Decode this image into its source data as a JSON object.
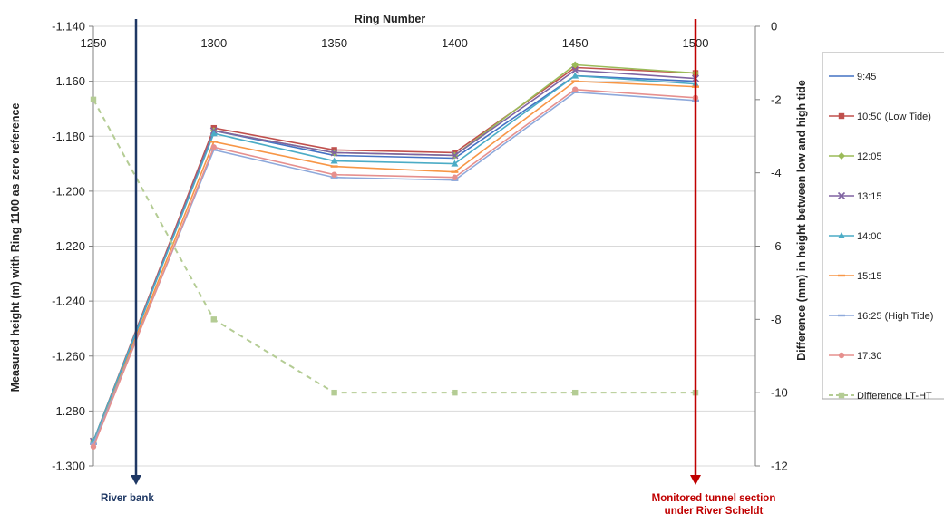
{
  "chart_data": {
    "type": "line",
    "title": "",
    "xlabel": "Ring Number",
    "ylabel": "Measured height (m) with Ring 1100 as zero reference",
    "y2label": "Difference (mm) in height  between low and high tide",
    "x": [
      1250,
      1300,
      1350,
      1400,
      1450,
      1500
    ],
    "xlim": [
      1250,
      1500
    ],
    "ylim": [
      -1.3,
      -1.14
    ],
    "y2lim": [
      -12,
      0
    ],
    "xticks": [
      "1250",
      "1300",
      "1350",
      "1400",
      "1450",
      "1500"
    ],
    "yticks": [
      "-1.140",
      "-1.160",
      "-1.180",
      "-1.200",
      "-1.220",
      "-1.240",
      "-1.260",
      "-1.280",
      "-1.300"
    ],
    "y2ticks": [
      "0",
      "-2",
      "-4",
      "-6",
      "-8",
      "-10",
      "-12"
    ],
    "grid": true,
    "legend_position": "right",
    "series": [
      {
        "name": "9:45",
        "color": "#4472C4",
        "marker": "none",
        "axis": "left",
        "values": [
          -1.292,
          -1.178,
          -1.187,
          -1.188,
          -1.158,
          -1.16
        ]
      },
      {
        "name": "10:50 (Low Tide)",
        "color": "#C0504D",
        "marker": "square",
        "axis": "left",
        "values": [
          -1.291,
          -1.177,
          -1.185,
          -1.186,
          -1.155,
          -1.157
        ]
      },
      {
        "name": "12:05",
        "color": "#9BBB59",
        "marker": "diamond",
        "axis": "left",
        "values": [
          -1.291,
          -1.178,
          -1.186,
          -1.187,
          -1.154,
          -1.157
        ]
      },
      {
        "name": "13:15",
        "color": "#8064A2",
        "marker": "x",
        "axis": "left",
        "values": [
          -1.291,
          -1.178,
          -1.186,
          -1.187,
          -1.156,
          -1.159
        ]
      },
      {
        "name": "14:00",
        "color": "#4BACC6",
        "marker": "triangle",
        "axis": "left",
        "values": [
          -1.291,
          -1.179,
          -1.189,
          -1.19,
          -1.158,
          -1.161
        ]
      },
      {
        "name": "15:15",
        "color": "#F79646",
        "marker": "dash",
        "axis": "left",
        "values": [
          -1.292,
          -1.182,
          -1.191,
          -1.193,
          -1.16,
          -1.162
        ]
      },
      {
        "name": "16:25 (High Tide)",
        "color": "#8EA9DB",
        "marker": "dash",
        "axis": "left",
        "values": [
          -1.292,
          -1.185,
          -1.195,
          -1.196,
          -1.164,
          -1.167
        ]
      },
      {
        "name": "17:30",
        "color": "#E6908E",
        "marker": "circle",
        "axis": "left",
        "values": [
          -1.293,
          -1.184,
          -1.194,
          -1.195,
          -1.163,
          -1.166
        ]
      },
      {
        "name": "Difference LT-HT",
        "color": "#B4CC94",
        "marker": "square",
        "dashed": true,
        "axis": "right",
        "values": [
          -2,
          -8,
          -10,
          -10,
          -10,
          -10
        ]
      }
    ],
    "annotations": [
      {
        "id": "river-bank",
        "x": 1260,
        "color": "#1F3864",
        "lines": [
          "River bank"
        ]
      },
      {
        "id": "monitored-section",
        "x": 1500,
        "color": "#C00000",
        "lines": [
          "Monitored tunnel section",
          "under River Scheldt"
        ]
      }
    ]
  }
}
